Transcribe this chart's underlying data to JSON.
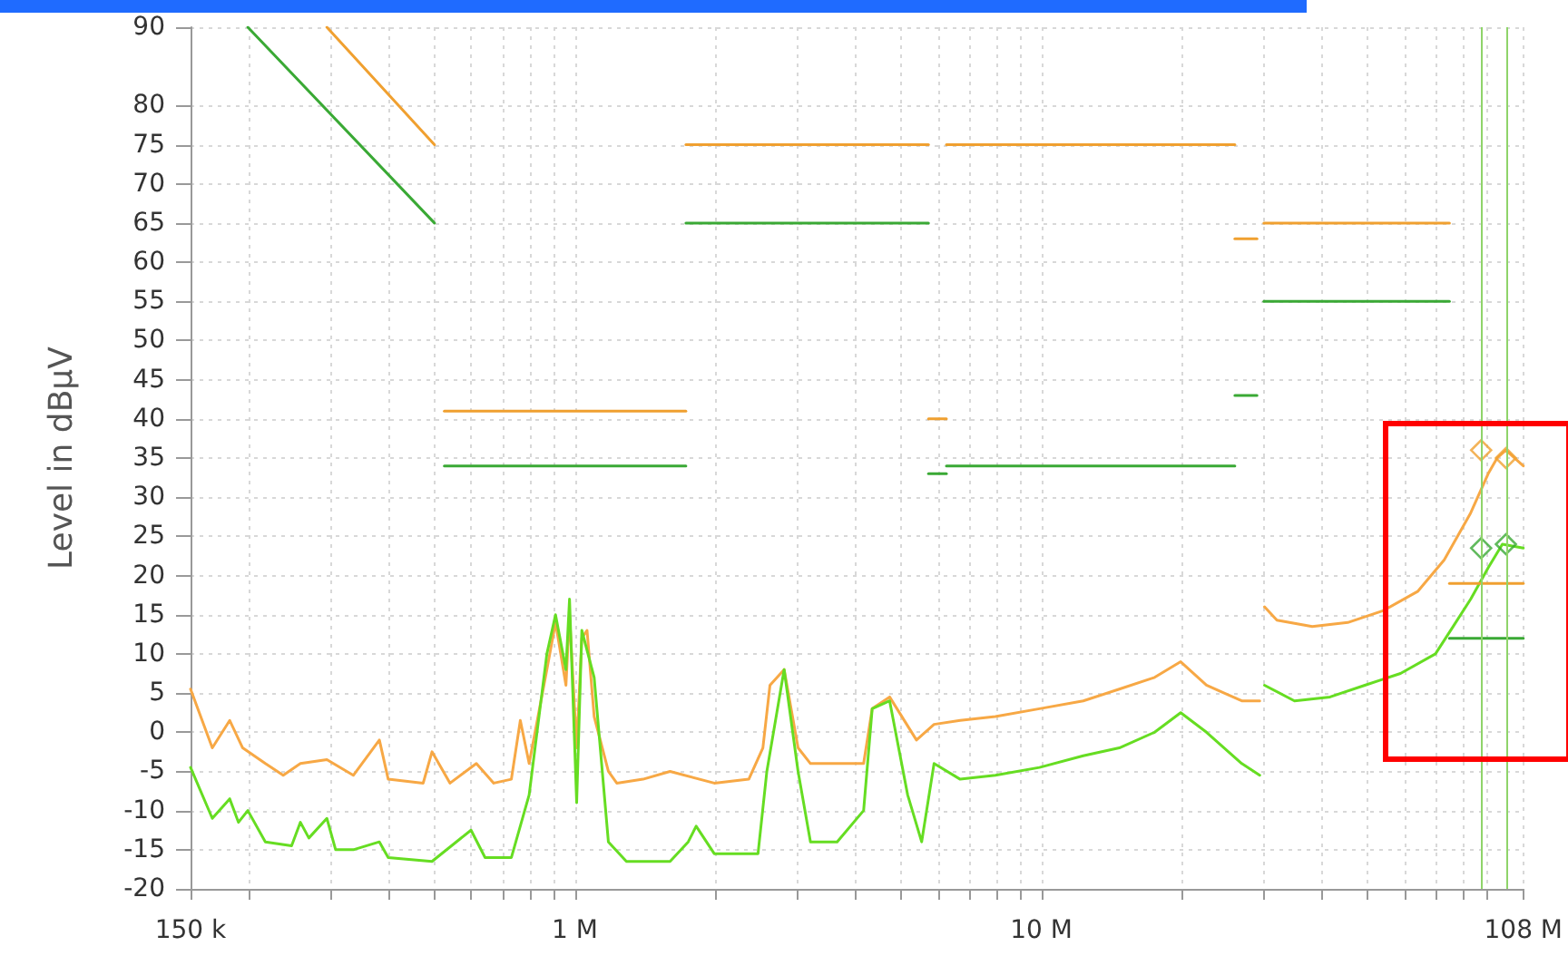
{
  "chart_data": {
    "type": "line",
    "ylabel": "Level in dBµV",
    "log": "x",
    "grid": true,
    "marker": "none",
    "line_style": "solid",
    "xlim": [
      0.15,
      108
    ],
    "ylim": [
      -20,
      90
    ],
    "xticks": [
      {
        "value": 0.15,
        "label": "150 k"
      },
      {
        "value": 0.2,
        "label": null
      },
      {
        "value": 0.3,
        "label": null
      },
      {
        "value": 0.4,
        "label": null
      },
      {
        "value": 0.5,
        "label": null
      },
      {
        "value": 0.6,
        "label": null
      },
      {
        "value": 0.7,
        "label": null
      },
      {
        "value": 0.8,
        "label": null
      },
      {
        "value": 0.9,
        "label": null
      },
      {
        "value": 1,
        "label": "1 M"
      },
      {
        "value": 2,
        "label": null
      },
      {
        "value": 3,
        "label": null
      },
      {
        "value": 4,
        "label": null
      },
      {
        "value": 5,
        "label": null
      },
      {
        "value": 6,
        "label": null
      },
      {
        "value": 7,
        "label": null
      },
      {
        "value": 8,
        "label": null
      },
      {
        "value": 9,
        "label": null
      },
      {
        "value": 10,
        "label": "10 M"
      },
      {
        "value": 20,
        "label": null
      },
      {
        "value": 30,
        "label": null
      },
      {
        "value": 40,
        "label": null
      },
      {
        "value": 50,
        "label": null
      },
      {
        "value": 60,
        "label": null
      },
      {
        "value": 70,
        "label": null
      },
      {
        "value": 80,
        "label": null
      },
      {
        "value": 90,
        "label": null
      },
      {
        "value": 108,
        "label": "108 M"
      }
    ],
    "yticks": [
      -20,
      -15,
      -10,
      -5,
      0,
      5,
      10,
      15,
      20,
      25,
      30,
      35,
      40,
      45,
      50,
      55,
      60,
      65,
      70,
      75,
      80,
      90
    ],
    "ref_lines": [
      {
        "axis": "x",
        "value": 87.7,
        "label": null,
        "color": "#8fd46a"
      },
      {
        "axis": "x",
        "value": 99.1,
        "label": null,
        "color": "#8fd46a"
      }
    ],
    "series": [
      {
        "color": "#f7a845",
        "x": [
          0.15,
          0.167,
          0.182,
          0.194,
          0.217,
          0.237,
          0.258,
          0.294,
          0.335,
          0.381,
          0.398,
          0.473,
          0.494,
          0.54,
          0.615,
          0.67,
          0.731,
          0.764,
          0.798,
          0.871,
          0.909,
          0.957,
          0.974,
          1.009,
          1.035,
          1.062,
          1.1,
          1.18,
          1.23,
          1.4,
          1.6,
          1.99,
          2.36,
          2.53,
          2.62,
          2.81,
          3.01,
          3.2,
          3.65,
          4.16,
          4.34,
          4.73,
          5.4,
          5.89,
          6.7,
          7.97,
          9.91,
          12.3,
          14.7,
          17.5,
          19.9,
          22.6,
          26.9,
          29.4,
          29.6,
          30.1,
          32.0,
          38.1,
          45.4,
          54.0,
          64.2,
          73.1,
          83.3,
          90.8,
          94.9,
          99.1,
          108
        ],
        "values": [
          5.5,
          -2,
          1.5,
          -2,
          -4,
          -5.5,
          -4,
          -3.5,
          -5.5,
          -1,
          -6,
          -6.5,
          -2.5,
          -6.5,
          -4,
          -6.5,
          -6,
          1.5,
          -4,
          8,
          14,
          6,
          15,
          -2,
          12,
          13,
          2,
          -5,
          -6.5,
          -6,
          -5,
          -6.5,
          -6,
          -2,
          6,
          8,
          -2,
          -4,
          -4,
          -4,
          3,
          4.5,
          -1,
          1,
          1.5,
          2,
          3,
          4,
          5.5,
          7,
          9,
          6,
          4,
          4,
          null,
          16,
          14.3,
          13.5,
          14,
          15.5,
          18,
          22,
          28,
          33,
          35,
          36,
          34
        ]
      },
      {
        "color": "#66dd22",
        "x": [
          0.15,
          0.167,
          0.182,
          0.19,
          0.199,
          0.217,
          0.247,
          0.258,
          0.269,
          0.294,
          0.307,
          0.335,
          0.381,
          0.398,
          0.494,
          0.599,
          0.642,
          0.731,
          0.798,
          0.871,
          0.909,
          0.957,
          0.974,
          1.009,
          1.035,
          1.1,
          1.18,
          1.29,
          1.6,
          1.75,
          1.82,
          1.99,
          2.47,
          2.58,
          2.81,
          3.01,
          3.2,
          3.65,
          4.16,
          4.34,
          4.73,
          5.17,
          5.54,
          5.89,
          6.7,
          7.97,
          9.91,
          12.3,
          14.7,
          17.5,
          19.9,
          22.6,
          26.9,
          29.4,
          29.6,
          30.1,
          34.9,
          41.6,
          49.4,
          58.9,
          70.0,
          76.4,
          83.3,
          90.8,
          97.4,
          108
        ],
        "values": [
          -4.5,
          -11,
          -8.5,
          -11.5,
          -10,
          -14,
          -14.5,
          -11.5,
          -13.5,
          -11,
          -15,
          -15,
          -14,
          -16,
          -16.5,
          -12.5,
          -16,
          -16,
          -8,
          10,
          15,
          8,
          17,
          -9,
          13,
          7,
          -14,
          -16.5,
          -16.5,
          -14,
          -12,
          -15.5,
          -15.5,
          -5,
          8,
          -5,
          -14,
          -14,
          -10,
          3,
          4,
          -8,
          -14,
          -4,
          -6,
          -5.5,
          -4.5,
          -3,
          -2,
          0,
          2.5,
          0,
          -4,
          -5.5,
          null,
          6,
          4,
          4.5,
          6,
          7.5,
          10,
          13.5,
          17,
          21,
          24,
          23.5
        ]
      },
      {
        "color": "#f0a030",
        "x": [
          0.294,
          0.5
        ],
        "values": [
          90,
          75
        ]
      },
      {
        "color": "#f0a030",
        "x": [
          0.525,
          1.73
        ],
        "values": [
          41,
          41
        ]
      },
      {
        "color": "#f0a030",
        "x": [
          1.73,
          5.73
        ],
        "values": [
          75,
          75
        ]
      },
      {
        "color": "#f0a030",
        "x": [
          5.73,
          6.26
        ],
        "values": [
          40,
          40
        ]
      },
      {
        "color": "#f0a030",
        "x": [
          6.26,
          26
        ],
        "values": [
          75,
          75
        ]
      },
      {
        "color": "#f0a030",
        "x": [
          26,
          29
        ],
        "values": [
          63,
          63
        ]
      },
      {
        "color": "#f0a030",
        "x": [
          30,
          75
        ],
        "values": [
          65,
          65
        ]
      },
      {
        "color": "#f0a030",
        "x": [
          75,
          108
        ],
        "values": [
          19,
          19
        ]
      },
      {
        "color": "#3aa935",
        "x": [
          0.199,
          0.5
        ],
        "values": [
          90,
          65
        ]
      },
      {
        "color": "#3aa935",
        "x": [
          0.525,
          1.73
        ],
        "values": [
          34,
          34
        ]
      },
      {
        "color": "#3aa935",
        "x": [
          1.73,
          5.73
        ],
        "values": [
          65,
          65
        ]
      },
      {
        "color": "#3aa935",
        "x": [
          5.73,
          6.26
        ],
        "values": [
          33,
          33
        ]
      },
      {
        "color": "#3aa935",
        "x": [
          6.26,
          26
        ],
        "values": [
          34,
          34
        ]
      },
      {
        "color": "#3aa935",
        "x": [
          26,
          29
        ],
        "values": [
          43,
          43
        ]
      },
      {
        "color": "#3aa935",
        "x": [
          30,
          75
        ],
        "values": [
          55,
          55
        ]
      },
      {
        "color": "#3aa935",
        "x": [
          75,
          108
        ],
        "values": [
          12,
          12
        ]
      },
      {
        "type": "scatter",
        "marker": "diamond",
        "color": "#f0a030",
        "x": [
          87.7,
          99.1
        ],
        "values": [
          36,
          35
        ]
      },
      {
        "type": "scatter",
        "marker": "diamond",
        "color": "#3aa935",
        "x": [
          87.7,
          99.1
        ],
        "values": [
          23.5,
          24
        ]
      }
    ]
  }
}
